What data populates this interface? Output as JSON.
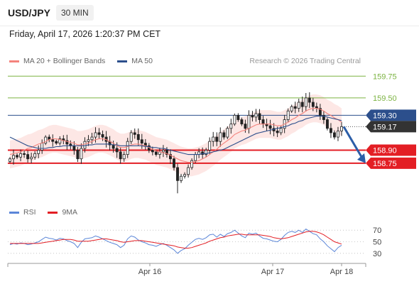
{
  "header": {
    "pair": "USD/JPY",
    "timeframe": "30 MIN"
  },
  "timestamp": "Friday, April 17, 2026 1:20:37 PM CET",
  "legend_main": [
    {
      "label": "MA 20 + Bollinger Bands",
      "color": "#f4837d"
    },
    {
      "label": "MA 50",
      "color": "#2c4f8c"
    }
  ],
  "legend_rsi": [
    {
      "label": "RSI",
      "color": "#5b86d8"
    },
    {
      "label": "9MA",
      "color": "#e31e24"
    }
  ],
  "credit": "Research © 2026 Trading Central",
  "chart_data": [
    {
      "type": "candlestick",
      "ylim": [
        158.3,
        159.85
      ],
      "x_ticks": [
        "Apr 16",
        "Apr 17",
        "Apr 18"
      ],
      "levels": [
        {
          "value": 159.75,
          "label": "159.75",
          "role": "resistance",
          "color": "#7cb342"
        },
        {
          "value": 159.5,
          "label": "159.50",
          "role": "resistance",
          "color": "#7cb342"
        },
        {
          "value": 159.3,
          "label": "159.30",
          "role": "pivot",
          "color": "#2c4f8c"
        },
        {
          "value": 159.17,
          "label": "159.17",
          "role": "last price",
          "color": "#333333"
        },
        {
          "value": 158.9,
          "label": "158.90",
          "role": "support",
          "color": "#e31e24"
        },
        {
          "value": 158.75,
          "label": "158.75",
          "role": "support",
          "color": "#e31e24"
        }
      ],
      "close": [
        158.8,
        158.84,
        158.82,
        158.86,
        158.85,
        158.8,
        158.82,
        158.86,
        158.9,
        158.98,
        159.05,
        159.02,
        159.0,
        158.98,
        159.03,
        159.01,
        158.97,
        158.95,
        158.9,
        158.8,
        158.92,
        159.0,
        159.02,
        159.05,
        159.1,
        159.08,
        159.05,
        159.0,
        158.96,
        158.92,
        158.88,
        158.8,
        158.85,
        159.0,
        159.1,
        159.08,
        159.02,
        158.98,
        158.95,
        158.9,
        158.88,
        158.85,
        158.88,
        158.9,
        158.85,
        158.8,
        158.7,
        158.55,
        158.6,
        158.62,
        158.7,
        158.78,
        158.85,
        158.88,
        158.85,
        158.9,
        159.0,
        159.05,
        159.0,
        159.1,
        159.05,
        159.15,
        159.2,
        159.3,
        159.25,
        159.2,
        159.15,
        159.3,
        159.28,
        159.32,
        159.25,
        159.2,
        159.18,
        159.15,
        159.12,
        159.1,
        159.15,
        159.25,
        159.35,
        159.4,
        159.38,
        159.45,
        159.4,
        159.5,
        159.45,
        159.4,
        159.38,
        159.3,
        159.25,
        159.15,
        159.1,
        159.05,
        159.12,
        159.17
      ],
      "ma20": [
        158.85,
        158.86,
        158.87,
        158.88,
        158.9,
        158.92,
        158.93,
        158.95,
        158.97,
        158.98,
        159.0,
        159.02,
        159.03,
        159.03,
        159.02,
        159.01,
        159.0,
        158.99,
        158.98,
        158.96,
        158.96,
        158.97,
        158.98,
        159.0,
        159.02,
        159.03,
        159.03,
        159.02,
        159.0,
        158.98,
        158.95,
        158.93,
        158.93,
        158.94,
        158.96,
        158.97,
        158.97,
        158.96,
        158.95,
        158.93,
        158.91,
        158.89,
        158.88,
        158.87,
        158.86,
        158.84,
        158.82,
        158.8,
        158.78,
        158.77,
        158.76,
        158.76,
        158.77,
        158.78,
        158.8,
        158.82,
        158.85,
        158.88,
        158.91,
        158.95,
        158.98,
        159.01,
        159.04,
        159.08,
        159.1,
        159.12,
        159.13,
        159.15,
        159.17,
        159.19,
        159.2,
        159.2,
        159.2,
        159.2,
        159.19,
        159.18,
        159.18,
        159.2,
        159.22,
        159.25,
        159.27,
        159.3,
        159.32,
        159.35,
        159.37,
        159.38,
        159.38,
        159.37,
        159.35,
        159.32,
        159.3,
        159.27,
        159.25,
        159.22
      ],
      "ma50": [
        159.05,
        159.03,
        159.01,
        158.99,
        158.97,
        158.95,
        158.94,
        158.93,
        158.92,
        158.92,
        158.92,
        158.93,
        158.93,
        158.94,
        158.94,
        158.95,
        158.95,
        158.95,
        158.95,
        158.95,
        158.95,
        158.95,
        158.96,
        158.96,
        158.97,
        158.97,
        158.97,
        158.97,
        158.97,
        158.96,
        158.96,
        158.95,
        158.95,
        158.95,
        158.95,
        158.95,
        158.95,
        158.95,
        158.94,
        158.94,
        158.93,
        158.93,
        158.92,
        158.92,
        158.91,
        158.9,
        158.89,
        158.88,
        158.87,
        158.86,
        158.85,
        158.85,
        158.85,
        158.85,
        158.86,
        158.86,
        158.87,
        158.88,
        158.89,
        158.9,
        158.91,
        158.93,
        158.95,
        158.97,
        158.99,
        159.01,
        159.03,
        159.05,
        159.07,
        159.09,
        159.1,
        159.11,
        159.12,
        159.13,
        159.14,
        159.15,
        159.16,
        159.17,
        159.18,
        159.2,
        159.21,
        159.23,
        159.24,
        159.26,
        159.27,
        159.28,
        159.29,
        159.29,
        159.29,
        159.28,
        159.27,
        159.26,
        159.25,
        159.24
      ],
      "band_width": 0.16,
      "forecast": {
        "from": 159.17,
        "to": 158.75
      }
    },
    {
      "type": "line",
      "name": "RSI",
      "ylim": [
        20,
        80
      ],
      "y_ticks": [
        {
          "value": 70,
          "label": "70"
        },
        {
          "value": 50,
          "label": "50"
        },
        {
          "value": 30,
          "label": "30"
        }
      ],
      "rsi": [
        45,
        47,
        46,
        48,
        47,
        45,
        46,
        48,
        50,
        54,
        58,
        56,
        55,
        53,
        56,
        55,
        52,
        50,
        47,
        40,
        49,
        55,
        56,
        57,
        60,
        58,
        55,
        52,
        49,
        47,
        45,
        40,
        44,
        55,
        60,
        58,
        53,
        50,
        48,
        45,
        44,
        42,
        45,
        47,
        44,
        40,
        36,
        30,
        35,
        38,
        44,
        49,
        54,
        56,
        54,
        57,
        62,
        63,
        58,
        63,
        59,
        64,
        66,
        70,
        65,
        60,
        57,
        65,
        63,
        65,
        60,
        56,
        55,
        53,
        51,
        50,
        54,
        61,
        66,
        68,
        66,
        70,
        66,
        72,
        68,
        64,
        62,
        55,
        50,
        43,
        38,
        33,
        40,
        44
      ],
      "rsi_ma9": [
        47,
        47,
        47,
        47,
        47,
        47,
        47,
        47,
        47,
        48,
        49,
        50,
        51,
        52,
        53,
        54,
        54,
        54,
        53,
        51,
        51,
        51,
        51,
        52,
        53,
        54,
        55,
        55,
        54,
        53,
        52,
        50,
        49,
        50,
        51,
        52,
        52,
        52,
        51,
        50,
        49,
        48,
        47,
        46,
        45,
        44,
        43,
        41,
        40,
        39,
        39,
        40,
        42,
        44,
        46,
        48,
        51,
        53,
        55,
        57,
        58,
        60,
        61,
        62,
        63,
        63,
        62,
        62,
        62,
        62,
        62,
        61,
        60,
        59,
        57,
        56,
        55,
        56,
        57,
        59,
        61,
        63,
        65,
        67,
        68,
        68,
        67,
        65,
        62,
        58,
        54,
        50,
        48,
        46
      ]
    }
  ]
}
